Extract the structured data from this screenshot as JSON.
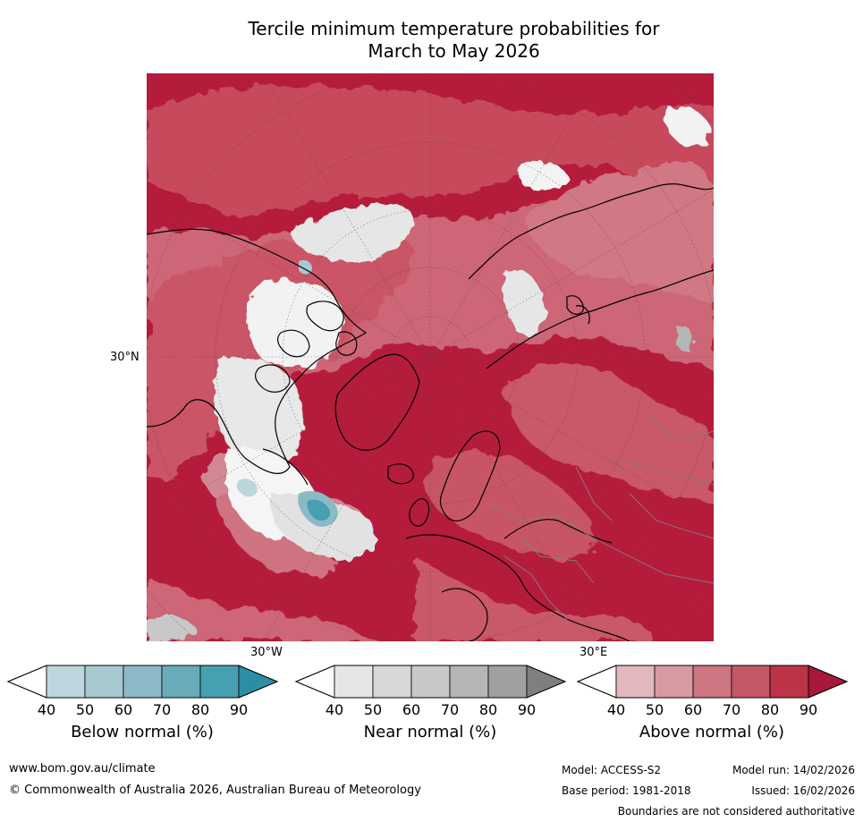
{
  "title": {
    "line1": "Tercile minimum temperature probabilities for",
    "line2": "March to May 2026"
  },
  "map": {
    "projection": "north-polar-stereographic",
    "labels": {
      "lat_30n": "30°N",
      "lon_30w": "30°W",
      "lon_30e": "30°E"
    },
    "colors": {
      "ocean_above": "#b51c3b",
      "coast": "#000000",
      "border": "#808080",
      "grid": "#444444"
    }
  },
  "colorbars": [
    {
      "name": "below",
      "title": "Below normal (%)",
      "ticks": [
        "40",
        "50",
        "60",
        "70",
        "80",
        "90"
      ],
      "colors": [
        "#ffffff",
        "#bdd6dd",
        "#a7c9d0",
        "#8cb9c6",
        "#6aabb8",
        "#47a0b1",
        "#2b8ea3"
      ]
    },
    {
      "name": "near",
      "title": "Near normal (%)",
      "ticks": [
        "40",
        "50",
        "60",
        "70",
        "80",
        "90"
      ],
      "colors": [
        "#ffffff",
        "#e6e6e6",
        "#d7d7d7",
        "#c8c8c8",
        "#b5b5b5",
        "#a0a0a0",
        "#7f7f7f"
      ]
    },
    {
      "name": "above",
      "title": "Above normal (%)",
      "ticks": [
        "40",
        "50",
        "60",
        "70",
        "80",
        "90"
      ],
      "colors": [
        "#ffffff",
        "#e2b7bd",
        "#d79aa3",
        "#cd7581",
        "#c45868",
        "#bb3448",
        "#a8183a"
      ]
    }
  ],
  "footer": {
    "website": "www.bom.gov.au/climate",
    "copyright": "© Commonwealth of Australia 2026, Australian Bureau of Meteorology",
    "model": "Model: ACCESS-S2",
    "model_run": "Model run: 14/02/2026",
    "base_period": "Base period: 1981-2018",
    "issued": "Issued: 16/02/2026",
    "disclaimer": "Boundaries are not considered authoritative"
  }
}
